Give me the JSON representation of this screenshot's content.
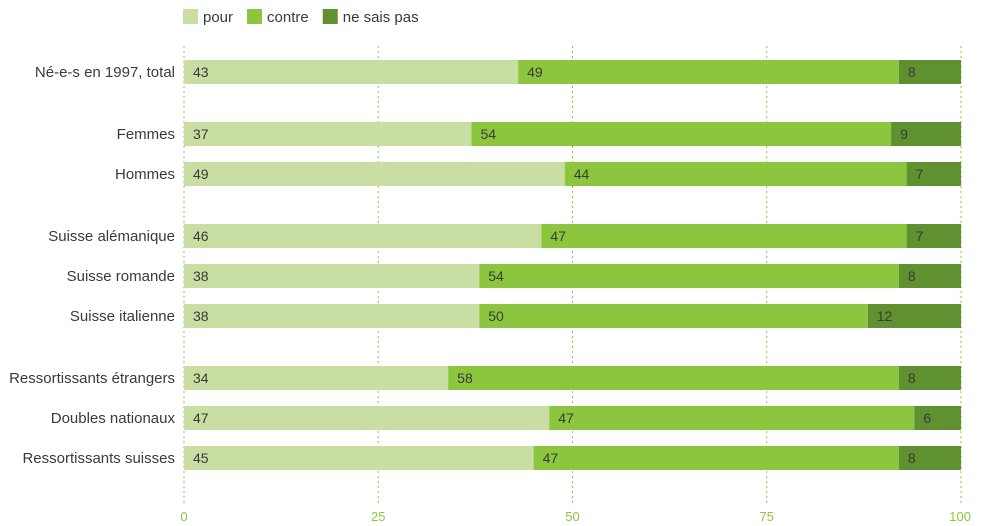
{
  "chart_data": {
    "type": "bar",
    "orientation": "horizontal",
    "stacked": true,
    "categories": [
      "Né-e-s en 1997, total",
      "Femmes",
      "Hommes",
      "Suisse alémanique",
      "Suisse romande",
      "Suisse italienne",
      "Ressortissants étrangers",
      "Doubles nationaux",
      "Ressortissants suisses"
    ],
    "groups": [
      [
        0
      ],
      [
        1,
        2
      ],
      [
        3,
        4,
        5
      ],
      [
        6,
        7,
        8
      ]
    ],
    "series": [
      {
        "name": "pour",
        "color": "#c9dea3",
        "values": [
          43,
          37,
          49,
          46,
          38,
          38,
          34,
          47,
          45
        ]
      },
      {
        "name": "contre",
        "color": "#8cc63f",
        "values": [
          49,
          54,
          44,
          47,
          54,
          50,
          58,
          47,
          47
        ]
      },
      {
        "name": "ne sais pas",
        "color": "#5f9130",
        "values": [
          8,
          9,
          7,
          7,
          8,
          12,
          8,
          6,
          8
        ]
      }
    ],
    "xlim": [
      0,
      100
    ],
    "xticks": [
      "0",
      "25",
      "50",
      "75",
      "100"
    ],
    "grid": "vertical dotted",
    "legend": "top-left"
  }
}
